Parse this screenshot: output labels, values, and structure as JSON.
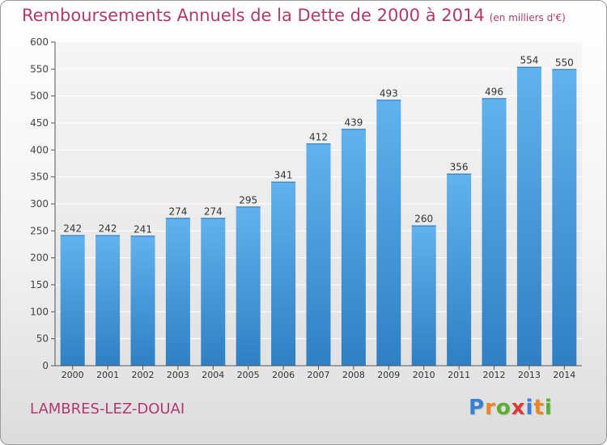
{
  "chart_data": {
    "type": "bar",
    "title": "Remboursements Annuels de la Dette de 2000 à 2014",
    "subtitle": "(en milliers d'€)",
    "categories": [
      "2000",
      "2001",
      "2002",
      "2003",
      "2004",
      "2005",
      "2006",
      "2007",
      "2008",
      "2009",
      "2010",
      "2011",
      "2012",
      "2013",
      "2014"
    ],
    "values": [
      242,
      242,
      241,
      274,
      274,
      295,
      341,
      412,
      439,
      493,
      260,
      356,
      496,
      554,
      550
    ],
    "ylim": [
      0,
      600
    ],
    "yticks": [
      0,
      50,
      100,
      150,
      200,
      250,
      300,
      350,
      400,
      450,
      500,
      550,
      600
    ],
    "xlabel": "",
    "ylabel": "",
    "grid": true,
    "bar_color": "#4a9fe0"
  },
  "footer": {
    "commune": "LAMBRES-LEZ-DOUAI",
    "logo_letters": [
      "P",
      "r",
      "o",
      "x",
      "i",
      "t",
      "i"
    ],
    "logo_colors": [
      "#3a7fd0",
      "#e8872a",
      "#5bb030",
      "#d83a3a",
      "#3a7fd0",
      "#e8872a",
      "#5bb030"
    ]
  }
}
